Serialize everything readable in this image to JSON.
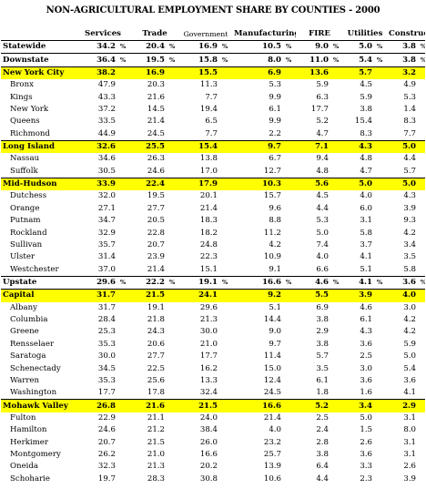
{
  "title": "NON-AGRICULTURAL EMPLOYMENT SHARE BY COUNTIES - 2000",
  "columns": [
    "Services",
    "Trade",
    "Government",
    "Manufacturing",
    "FIRE",
    "Utilities",
    "Construction"
  ],
  "pct_symbol": "%",
  "rows": [
    {
      "name": "Statewide",
      "type": "summary",
      "pct": true,
      "v": [
        "34.2",
        "20.4",
        "16.9",
        "10.5",
        "9.0",
        "5.0",
        "3.8"
      ]
    },
    {
      "name": "Downstate",
      "type": "summary",
      "pct": true,
      "v": [
        "36.4",
        "19.5",
        "15.8",
        "8.0",
        "11.0",
        "5.4",
        "3.8"
      ]
    },
    {
      "name": "New York City",
      "type": "region",
      "v": [
        "38.2",
        "16.9",
        "15.5",
        "6.9",
        "13.6",
        "5.7",
        "3.2"
      ]
    },
    {
      "name": "Bronx",
      "type": "county",
      "v": [
        "47.9",
        "20.3",
        "11.3",
        "5.3",
        "5.9",
        "4.5",
        "4.9"
      ]
    },
    {
      "name": "Kings",
      "type": "county",
      "v": [
        "43.3",
        "21.6",
        "7.7",
        "9.9",
        "6.3",
        "5.9",
        "5.3"
      ]
    },
    {
      "name": "New York",
      "type": "county",
      "v": [
        "37.2",
        "14.5",
        "19.4",
        "6.1",
        "17.7",
        "3.8",
        "1.4"
      ]
    },
    {
      "name": "Queens",
      "type": "county",
      "v": [
        "33.5",
        "21.4",
        "6.5",
        "9.9",
        "5.2",
        "15.4",
        "8.3"
      ]
    },
    {
      "name": "Richmond",
      "type": "county",
      "v": [
        "44.9",
        "24.5",
        "7.7",
        "2.2",
        "4.7",
        "8.3",
        "7.7"
      ]
    },
    {
      "name": "Long Island",
      "type": "region",
      "v": [
        "32.6",
        "25.5",
        "15.4",
        "9.7",
        "7.1",
        "4.3",
        "5.0"
      ]
    },
    {
      "name": "Nassau",
      "type": "county",
      "v": [
        "34.6",
        "26.3",
        "13.8",
        "6.7",
        "9.4",
        "4.8",
        "4.4"
      ]
    },
    {
      "name": "Suffolk",
      "type": "county",
      "v": [
        "30.5",
        "24.6",
        "17.0",
        "12.7",
        "4.8",
        "4.7",
        "5.7"
      ]
    },
    {
      "name": "Mid-Hudson",
      "type": "region",
      "v": [
        "33.9",
        "22.4",
        "17.9",
        "10.3",
        "5.6",
        "5.0",
        "5.0"
      ]
    },
    {
      "name": "Dutchess",
      "type": "county",
      "v": [
        "32.0",
        "19.5",
        "20.1",
        "15.7",
        "4.5",
        "4.0",
        "4.3"
      ]
    },
    {
      "name": "Orange",
      "type": "county",
      "v": [
        "27.1",
        "27.7",
        "21.4",
        "9.6",
        "4.4",
        "6.0",
        "3.9"
      ]
    },
    {
      "name": "Putnam",
      "type": "county",
      "v": [
        "34.7",
        "20.5",
        "18.3",
        "8.8",
        "5.3",
        "3.1",
        "9.3"
      ]
    },
    {
      "name": "Rockland",
      "type": "county",
      "v": [
        "32.9",
        "22.8",
        "18.2",
        "11.2",
        "5.0",
        "5.8",
        "4.2"
      ]
    },
    {
      "name": "Sullivan",
      "type": "county",
      "v": [
        "35.7",
        "20.7",
        "24.8",
        "4.2",
        "7.4",
        "3.7",
        "3.4"
      ]
    },
    {
      "name": "Ulster",
      "type": "county",
      "v": [
        "31.4",
        "23.9",
        "22.3",
        "10.9",
        "4.0",
        "4.1",
        "3.5"
      ]
    },
    {
      "name": "Westchester",
      "type": "county",
      "v": [
        "37.0",
        "21.4",
        "15.1",
        "9.1",
        "6.6",
        "5.1",
        "5.8"
      ]
    },
    {
      "name": "Upstate",
      "type": "summary",
      "pct": true,
      "v": [
        "29.6",
        "22.2",
        "19.1",
        "16.6",
        "4.6",
        "4.1",
        "3.6"
      ]
    },
    {
      "name": "Capital",
      "type": "region",
      "v": [
        "31.7",
        "21.5",
        "24.1",
        "9.2",
        "5.5",
        "3.9",
        "4.0"
      ]
    },
    {
      "name": "Albany",
      "type": "county",
      "v": [
        "31.7",
        "19.1",
        "29.6",
        "5.1",
        "6.9",
        "4.6",
        "3.0"
      ]
    },
    {
      "name": "Columbia",
      "type": "county",
      "v": [
        "28.4",
        "21.8",
        "21.3",
        "14.4",
        "3.8",
        "6.1",
        "4.2"
      ]
    },
    {
      "name": "Greene",
      "type": "county",
      "v": [
        "25.3",
        "24.3",
        "30.0",
        "9.0",
        "2.9",
        "4.3",
        "4.2"
      ]
    },
    {
      "name": "Rensselaer",
      "type": "county",
      "v": [
        "35.3",
        "20.6",
        "21.0",
        "9.7",
        "3.8",
        "3.6",
        "5.9"
      ]
    },
    {
      "name": "Saratoga",
      "type": "county",
      "v": [
        "30.0",
        "27.7",
        "17.7",
        "11.4",
        "5.7",
        "2.5",
        "5.0"
      ]
    },
    {
      "name": "Schenectady",
      "type": "county",
      "v": [
        "34.5",
        "22.5",
        "16.2",
        "15.0",
        "3.5",
        "3.0",
        "5.4"
      ]
    },
    {
      "name": "Warren",
      "type": "county",
      "v": [
        "35.3",
        "25.6",
        "13.3",
        "12.4",
        "6.1",
        "3.6",
        "3.6"
      ]
    },
    {
      "name": "Washington",
      "type": "county",
      "v": [
        "17.7",
        "17.8",
        "32.4",
        "24.5",
        "1.8",
        "1.6",
        "4.1"
      ]
    },
    {
      "name": "Mohawk Valley",
      "type": "region",
      "v": [
        "26.8",
        "21.6",
        "21.5",
        "16.6",
        "5.2",
        "3.4",
        "2.9"
      ]
    },
    {
      "name": "Fulton",
      "type": "county",
      "v": [
        "22.9",
        "21.1",
        "24.0",
        "21.4",
        "2.5",
        "5.0",
        "3.1"
      ]
    },
    {
      "name": "Hamilton",
      "type": "county",
      "v": [
        "24.6",
        "21.2",
        "38.4",
        "4.0",
        "2.4",
        "1.5",
        "8.0"
      ]
    },
    {
      "name": "Herkimer",
      "type": "county",
      "v": [
        "20.7",
        "21.5",
        "26.0",
        "23.2",
        "2.8",
        "2.6",
        "3.1"
      ]
    },
    {
      "name": "Montgomery",
      "type": "county",
      "v": [
        "26.2",
        "21.0",
        "16.6",
        "25.7",
        "3.8",
        "3.6",
        "3.1"
      ]
    },
    {
      "name": "Oneida",
      "type": "county",
      "v": [
        "32.3",
        "21.3",
        "20.2",
        "13.9",
        "6.4",
        "3.3",
        "2.6"
      ]
    },
    {
      "name": "Schoharie",
      "type": "county",
      "v": [
        "19.7",
        "28.3",
        "30.8",
        "10.6",
        "4.4",
        "2.3",
        "3.9"
      ]
    }
  ]
}
